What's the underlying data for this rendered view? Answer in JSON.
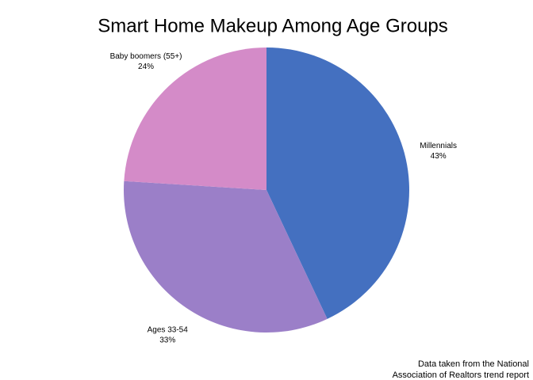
{
  "chart_data": {
    "type": "pie",
    "title": "Smart Home Makeup Among Age Groups",
    "categories": [
      "Millennials",
      "Ages 33-54",
      "Baby boomers (55+)"
    ],
    "values": [
      43,
      33,
      24
    ],
    "value_labels": [
      "43%",
      "33%",
      "24%"
    ],
    "colors": [
      "#4470c0",
      "#9b7fc8",
      "#d48bc8"
    ],
    "annotation": [
      "Data taken from the National",
      "Association of Realtors trend report"
    ]
  }
}
